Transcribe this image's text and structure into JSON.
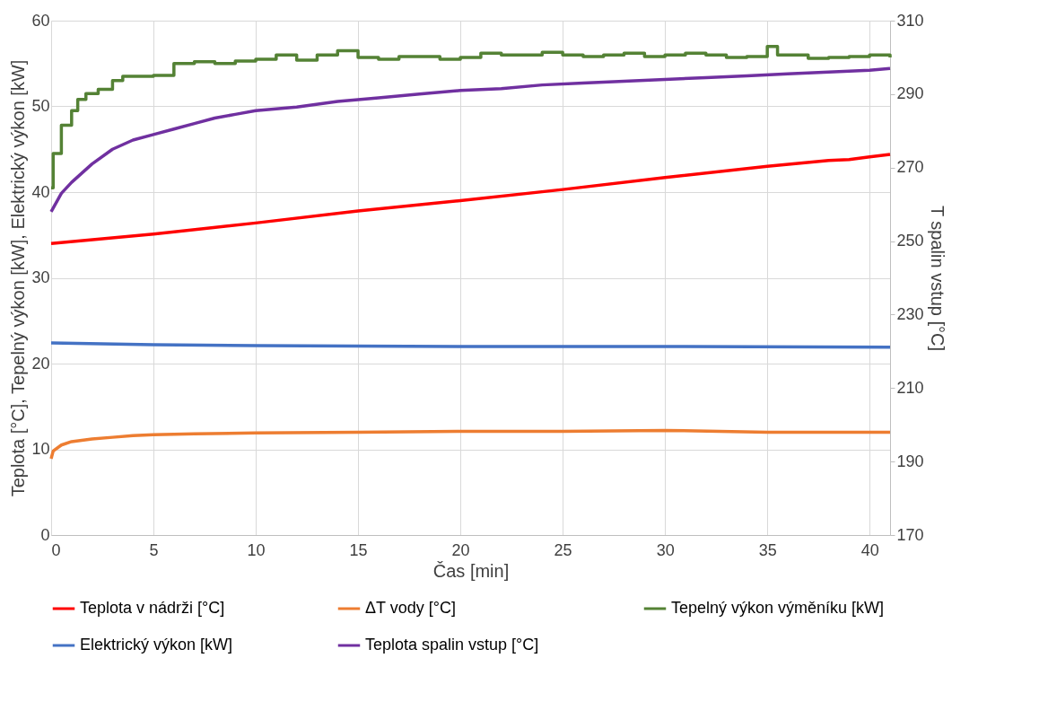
{
  "chart_data": {
    "type": "line",
    "xlabel": "Čas [min]",
    "ylabel": "Teplota [°C], Tepelný výkon [kW], Elektrický výkon [kW]",
    "y2label": "T spalin vstup [°C]",
    "xlim": [
      0,
      41
    ],
    "xticks": [
      0,
      5,
      10,
      15,
      20,
      25,
      30,
      35,
      40
    ],
    "ylim": [
      0,
      60
    ],
    "yticks": [
      0,
      10,
      20,
      30,
      40,
      50,
      60
    ],
    "y2lim": [
      170,
      310
    ],
    "y2ticks": [
      170,
      190,
      210,
      230,
      250,
      270,
      290,
      310
    ],
    "grid": true,
    "legend": "bottom",
    "marker": "none",
    "line_style": "solid",
    "series": [
      {
        "name": "Teplota v nádrži [°C]",
        "color": "#ff0000",
        "x": [
          0,
          5,
          10,
          15,
          20,
          25,
          30,
          35,
          38,
          39,
          40,
          41
        ],
        "values": [
          34,
          35.1,
          36.4,
          37.8,
          39,
          40.3,
          41.7,
          43,
          43.7,
          43.8,
          44.1,
          44.4
        ]
      },
      {
        "name": "ΔT vody [°C]",
        "color": "#ed7d31",
        "x": [
          0,
          0.1,
          0.5,
          1,
          2,
          3,
          4,
          5,
          7,
          10,
          15,
          20,
          25,
          30,
          35,
          41
        ],
        "values": [
          8.9,
          9.8,
          10.5,
          10.9,
          11.2,
          11.4,
          11.6,
          11.7,
          11.8,
          11.9,
          12,
          12.1,
          12.1,
          12.2,
          12,
          12
        ]
      },
      {
        "name": "Tepelný výkon výměníku [kW]",
        "type": "step",
        "color": "#548235",
        "x": [
          0,
          0.1,
          0.5,
          1,
          1.3,
          1.7,
          2.3,
          3,
          3.5,
          5,
          6,
          7,
          8,
          9,
          10,
          11,
          12,
          13,
          14,
          15,
          16,
          17,
          18,
          19,
          20,
          21,
          22,
          23,
          24,
          25,
          26,
          27,
          28,
          29,
          30,
          31,
          32,
          33,
          34,
          35,
          35.5,
          37,
          38,
          39,
          40,
          41
        ],
        "values": [
          40.5,
          44.5,
          47.8,
          49.5,
          50.8,
          51.5,
          52,
          53,
          53.5,
          53.6,
          55,
          55.2,
          55,
          55.3,
          55.5,
          56,
          55.4,
          56,
          56.5,
          55.7,
          55.5,
          55.8,
          55.8,
          55.5,
          55.7,
          56.2,
          56,
          56,
          56.3,
          56,
          55.8,
          56,
          56.2,
          55.8,
          56,
          56.2,
          56,
          55.7,
          55.8,
          57,
          56,
          55.6,
          55.7,
          55.8,
          56,
          55.7
        ]
      },
      {
        "name": "Elektrický výkon [kW]",
        "color": "#4472c4",
        "x": [
          0,
          5,
          10,
          20,
          30,
          41
        ],
        "values": [
          22.4,
          22.2,
          22.1,
          22,
          22,
          21.9
        ]
      },
      {
        "name": "Teplota spalin vstup [°C]",
        "color": "#7030a0",
        "axis": "y2",
        "x": [
          0,
          0.5,
          1,
          2,
          3,
          4,
          5,
          6,
          7,
          8,
          9,
          10,
          12,
          14,
          16,
          18,
          20,
          22,
          24,
          26,
          28,
          30,
          32,
          34,
          36,
          38,
          40,
          41
        ],
        "values": [
          258,
          263,
          266,
          271,
          275,
          277.5,
          279,
          280.5,
          282,
          283.5,
          284.5,
          285.5,
          286.5,
          288,
          289,
          290,
          291,
          291.5,
          292.5,
          293,
          293.5,
          294,
          294.5,
          295,
          295.5,
          296,
          296.5,
          297
        ]
      }
    ]
  }
}
